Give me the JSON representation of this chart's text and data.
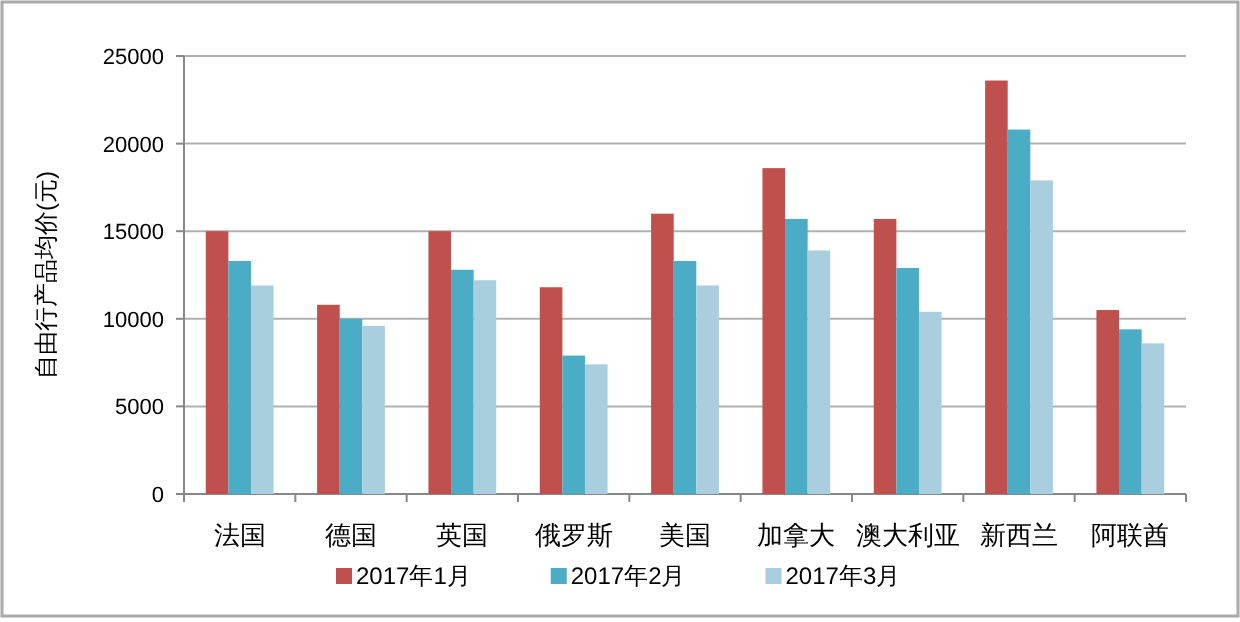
{
  "chart_data": {
    "type": "bar",
    "ylabel": "自由行产品均价(元)",
    "categories": [
      "法国",
      "德国",
      "英国",
      "俄罗斯",
      "美国",
      "加拿大",
      "澳大利亚",
      "新西兰",
      "阿联酋"
    ],
    "series": [
      {
        "name": "2017年1月",
        "color": "#c0504d",
        "values": [
          15000,
          10800,
          15000,
          11800,
          16000,
          18600,
          15700,
          23600,
          10500
        ]
      },
      {
        "name": "2017年2月",
        "color": "#4bacc6",
        "values": [
          13300,
          10000,
          12800,
          7900,
          13300,
          15700,
          12900,
          20800,
          9400
        ]
      },
      {
        "name": "2017年3月",
        "color": "#a9cfde",
        "values": [
          11900,
          9600,
          12200,
          7400,
          11900,
          13900,
          10400,
          17900,
          8600
        ]
      }
    ],
    "ylim": [
      0,
      25000
    ],
    "yticks": [
      0,
      5000,
      10000,
      15000,
      20000,
      25000
    ],
    "grid": "y",
    "legend": "bottom"
  }
}
